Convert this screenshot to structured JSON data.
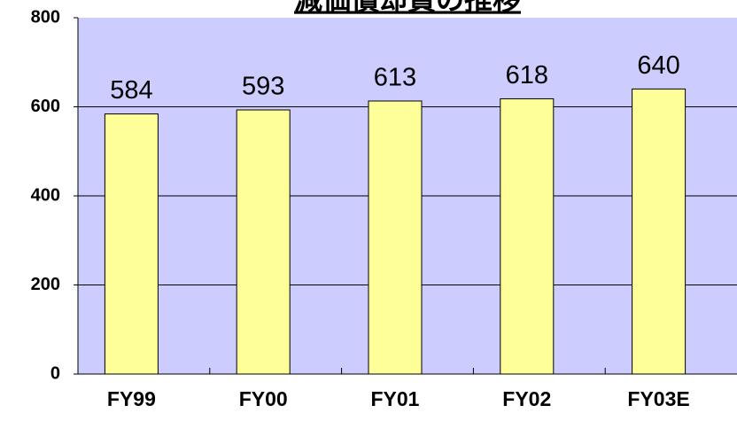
{
  "chart_data": {
    "type": "bar",
    "title": "減価償却費の推移",
    "categories": [
      "FY99",
      "FY00",
      "FY01",
      "FY02",
      "FY03E"
    ],
    "values": [
      584,
      593,
      613,
      618,
      640
    ],
    "color": "#ffff99",
    "background": "#ccccff",
    "ylim": [
      0,
      800
    ],
    "yticks": [
      0,
      200,
      400,
      600,
      800
    ],
    "grid": true
  }
}
